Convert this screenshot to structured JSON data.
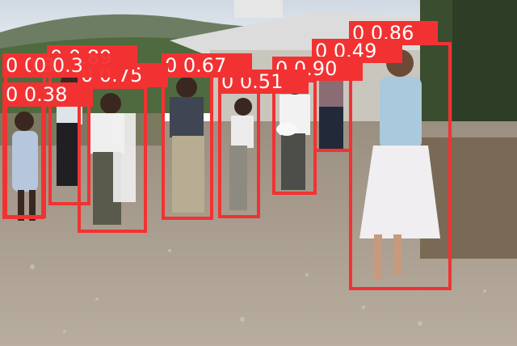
{
  "image": {
    "description_free": true
  },
  "colors": {
    "box": "#f23232",
    "label_text": "#ffffff"
  },
  "detections": [
    {
      "id": "d1",
      "label": "0 0.86"
    },
    {
      "id": "d2",
      "label": "0 0.49"
    },
    {
      "id": "d3",
      "label": "0 0.90"
    },
    {
      "id": "d4",
      "label": "0 0.51"
    },
    {
      "id": "d5",
      "label": "0 0.67"
    },
    {
      "id": "d6",
      "label": "0 0.75"
    },
    {
      "id": "d7",
      "label": "0 0.89"
    },
    {
      "id": "d8",
      "label": "0 0.3"
    },
    {
      "id": "d9",
      "label": "0 0.38"
    },
    {
      "id": "d10",
      "label": "0 0.3"
    }
  ]
}
